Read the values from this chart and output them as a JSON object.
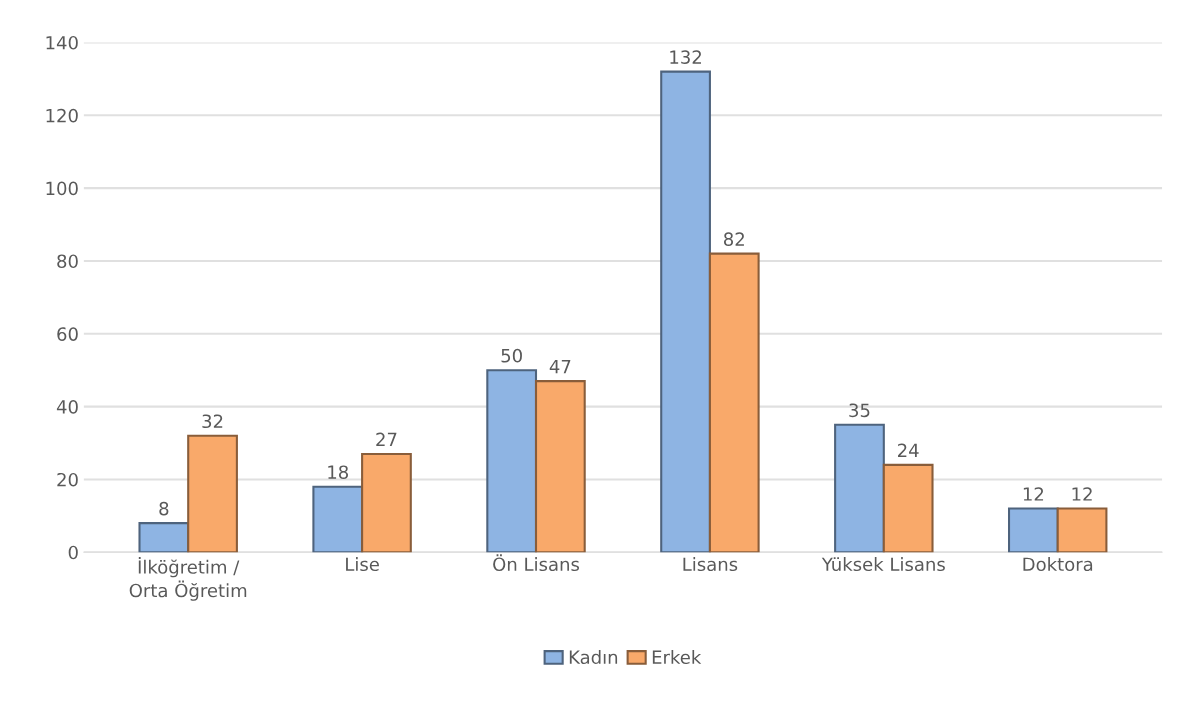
{
  "chart_data": {
    "type": "bar",
    "categories": [
      "İlköğretim /\nOrta Öğretim",
      "Lise",
      "Ön Lisans",
      "Lisans",
      "Yüksek Lisans",
      "Doktora"
    ],
    "series": [
      {
        "name": "Kadın",
        "color": "#8eb4e3",
        "values": [
          8,
          18,
          50,
          132,
          35,
          12
        ]
      },
      {
        "name": "Erkek",
        "color": "#f9a96a",
        "values": [
          32,
          27,
          47,
          82,
          24,
          12
        ]
      }
    ],
    "ylim": [
      0,
      140
    ],
    "yticks": [
      0,
      20,
      40,
      60,
      80,
      100,
      120,
      140
    ],
    "grid": "y",
    "legend": "bottom",
    "data_labels": true
  }
}
